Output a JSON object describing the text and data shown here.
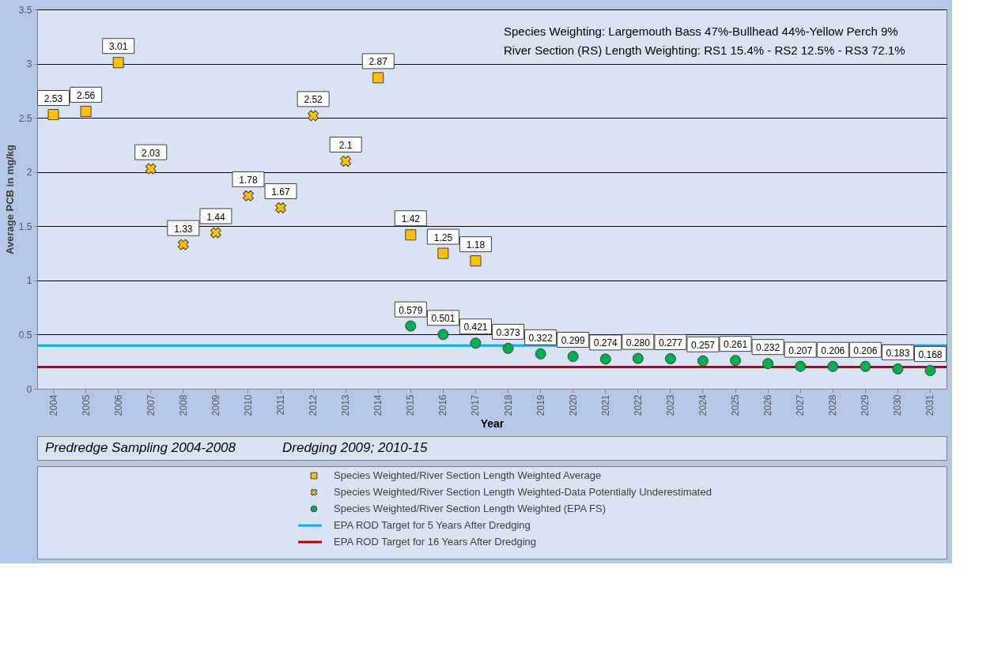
{
  "chart_data": {
    "type": "scatter",
    "xlabel": "Year",
    "ylabel": "Average PCB in mg/kg",
    "categories": [
      "2004",
      "2005",
      "2006",
      "2007",
      "2008",
      "2009",
      "2010",
      "2011",
      "2012",
      "2013",
      "2014",
      "2015",
      "2016",
      "2017",
      "2018",
      "2019",
      "2020",
      "2021",
      "2022",
      "2023",
      "2024",
      "2025",
      "2026",
      "2027",
      "2028",
      "2029",
      "2030",
      "2031"
    ],
    "series": [
      {
        "name": "Species Weighted/River Section Length Weighted Average",
        "color": "#ffc000",
        "marker": "square",
        "values": [
          2.53,
          2.56,
          3.01,
          null,
          null,
          null,
          null,
          null,
          null,
          null,
          2.87,
          1.42,
          1.25,
          1.18,
          null,
          null,
          null,
          null,
          null,
          null,
          null,
          null,
          null,
          null,
          null,
          null,
          null,
          null
        ]
      },
      {
        "name": "Species Weighted/River Section Length Weighted-Data Potentially Underestimated",
        "color": "#ffc000",
        "marker": "cross",
        "values": [
          null,
          null,
          null,
          2.03,
          1.33,
          1.44,
          1.78,
          1.67,
          2.52,
          2.1,
          null,
          null,
          null,
          null,
          null,
          null,
          null,
          null,
          null,
          null,
          null,
          null,
          null,
          null,
          null,
          null,
          null,
          null
        ]
      },
      {
        "name": "Species Weighted/River Section Length Weighted (EPA FS)",
        "color": "#00b050",
        "marker": "circle",
        "values": [
          null,
          null,
          null,
          null,
          null,
          null,
          null,
          null,
          null,
          null,
          null,
          0.579,
          0.501,
          0.421,
          0.373,
          0.322,
          0.299,
          0.274,
          0.28,
          0.277,
          0.257,
          0.261,
          0.232,
          0.207,
          0.206,
          0.206,
          0.183,
          0.168
        ],
        "value_labels": [
          null,
          null,
          null,
          null,
          null,
          null,
          null,
          null,
          null,
          null,
          null,
          "0.579",
          "0.501",
          "0.421",
          "0.373",
          "0.322",
          "0.299",
          "0.274",
          "0.280",
          "0.277",
          "0.257",
          "0.261",
          "0.232",
          "0.207",
          "0.206",
          "0.206",
          "0.183",
          "0.168"
        ]
      }
    ],
    "data_labels": true,
    "ref_lines": [
      {
        "axis": "y",
        "value": 0.4,
        "label": "EPA ROD Target for 5 Years After Dredging",
        "color": "#00b0f0"
      },
      {
        "axis": "y",
        "value": 0.2,
        "label": "EPA ROD Target for 16 Years After Dredging",
        "color": "#c00000"
      }
    ],
    "ylim": [
      0,
      3.5
    ],
    "yticks": [
      0,
      0.5,
      1,
      1.5,
      2,
      2.5,
      3,
      3.5
    ],
    "grid": "y",
    "legend": "bottom",
    "annotations": [
      "Species Weighting: Largemouth Bass 47%-Bullhead 44%-Yellow Perch 9%",
      "River Section (RS) Length Weighting: RS1 15.4% - RS2 12.5% - RS3 72.1%",
      "Predredge Sampling 2004-2008",
      "Dredging 2009; 2010-15"
    ]
  }
}
